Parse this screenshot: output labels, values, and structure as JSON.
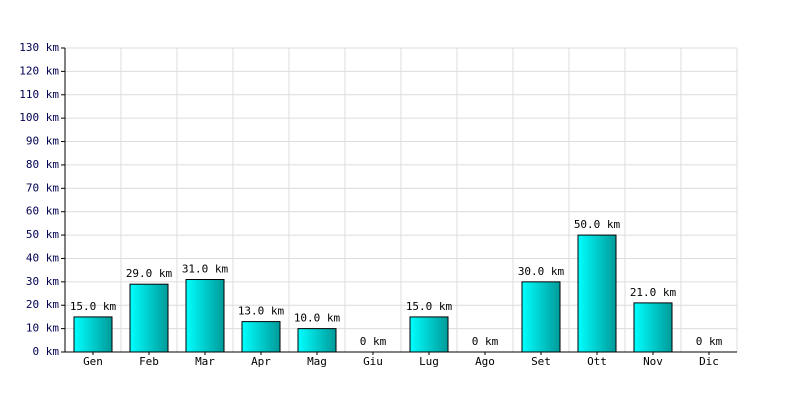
{
  "chart_data": {
    "type": "bar",
    "categories": [
      "Gen",
      "Feb",
      "Mar",
      "Apr",
      "Mag",
      "Giu",
      "Lug",
      "Ago",
      "Set",
      "Ott",
      "Nov",
      "Dic"
    ],
    "values": [
      15,
      29,
      31,
      13,
      10,
      0,
      15,
      0,
      30,
      50,
      21,
      0
    ],
    "value_labels": [
      "15.0 km",
      "29.0 km",
      "31.0 km",
      "13.0 km",
      "10.0 km",
      "0 km",
      "15.0 km",
      "0 km",
      "30.0 km",
      "50.0 km",
      "21.0 km",
      "0 km"
    ],
    "color": "#00c8c8",
    "ylim": [
      0,
      130
    ],
    "yticks": [
      {
        "value": 0,
        "label": "0 km"
      },
      {
        "value": 10,
        "label": "10 km"
      },
      {
        "value": 20,
        "label": "20 km"
      },
      {
        "value": 30,
        "label": "30 km"
      },
      {
        "value": 40,
        "label": "40 km"
      },
      {
        "value": 50,
        "label": "50 km"
      },
      {
        "value": 60,
        "label": "60 km"
      },
      {
        "value": 70,
        "label": "70 km"
      },
      {
        "value": 80,
        "label": "80 km"
      },
      {
        "value": 90,
        "label": "90 km"
      },
      {
        "value": 100,
        "label": "100 km"
      },
      {
        "value": 110,
        "label": "110 km"
      },
      {
        "value": 120,
        "label": "120 km"
      },
      {
        "value": 130,
        "label": "130 km"
      }
    ],
    "grid": true
  }
}
